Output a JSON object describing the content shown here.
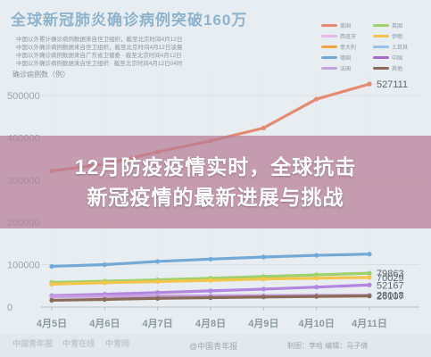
{
  "header": {
    "title": "全球新冠肺炎确诊病例突破160万",
    "subtitle_lines": [
      "中国以外累计确诊病例数据来自世卫组织，截至北京时间4月12日",
      "中国以外确诊病例数据来自世卫组织，截至北京时间4月12日凌晨",
      "中国以外确诊病例数据来自广东省卫健委 · 截至北京时间4月12日",
      "中国以外确诊病例数据来自世卫组织 · 截至北京时间4月12日04时"
    ],
    "unit_label": "确诊病例数（例）"
  },
  "banner": {
    "line1": "12月防疫疫情实时，全球抗击",
    "line2": "新冠疫情的最新进展与挑战"
  },
  "legend": [
    {
      "label": "美国",
      "color": "#e58a72"
    },
    {
      "label": "英国",
      "color": "#9ed06b"
    },
    {
      "label": "西班牙",
      "color": "#e8b8e8"
    },
    {
      "label": "伊朗",
      "color": "#f4c54c"
    },
    {
      "label": "意大利",
      "color": "#f0a640"
    },
    {
      "label": "土耳其",
      "color": "#9ac0e6"
    },
    {
      "label": "德国",
      "color": "#73a9d6"
    },
    {
      "label": "中国",
      "color": "#a46cc8"
    },
    {
      "label": "法国",
      "color": "#c8a0e0"
    },
    {
      "label": "其他",
      "color": "#8a6a58"
    }
  ],
  "chart_data": {
    "type": "line",
    "title": "全球新冠肺炎确诊病例突破160万",
    "ylabel": "确诊病例数（例）",
    "categories": [
      "4月5日",
      "4月6日",
      "4月7日",
      "4月8日",
      "4月9日",
      "4月10日",
      "4月11日"
    ],
    "y_ticks": [
      0,
      100000,
      200000,
      300000,
      400000,
      500000
    ],
    "y_tick_labels": [
      "0",
      "100000",
      "200000",
      "300000",
      "400000",
      "500000"
    ],
    "ylim": [
      0,
      540000
    ],
    "grid": true,
    "series": [
      {
        "name": "美国",
        "color": "#e58a72",
        "values": [
          321762,
          337620,
          366614,
          392594,
          423164,
          491358,
          527111
        ],
        "end_label": "527111"
      },
      {
        "name": "德国",
        "color": "#73a9d6",
        "values": [
          96092,
          100123,
          107663,
          113296,
          118181,
          122171,
          125098
        ]
      },
      {
        "name": "英国",
        "color": "#9ed06b",
        "values": [
          58000,
          61000,
          64000,
          68000,
          72000,
          76000,
          79863
        ],
        "end_label": "79863"
      },
      {
        "name": "伊朗",
        "color": "#f4c54c",
        "values": [
          54000,
          57500,
          60000,
          63000,
          66000,
          68192,
          70029
        ],
        "end_label": "70029"
      },
      {
        "name": "土耳其",
        "color": "#b285e0",
        "values": [
          27069,
          30217,
          34109,
          38226,
          42282,
          47029,
          52167
        ],
        "end_label": "52167"
      },
      {
        "name": "法国",
        "color": "#c8a0e0",
        "values": [
          24500,
          25300,
          26100,
          26800,
          27300,
          27700,
          28018
        ],
        "end_label": "28018"
      },
      {
        "name": "其他",
        "color": "#8a6a58",
        "values": [
          16000,
          18000,
          20500,
          22200,
          23800,
          25100,
          26107
        ],
        "end_label": "26107"
      }
    ]
  },
  "footer": {
    "logo1": "中国青年报",
    "logo2": "中青在线",
    "logo3": "中青网",
    "source": "@中国青年报",
    "credit": "制图：李晗  编辑：马子倩"
  }
}
